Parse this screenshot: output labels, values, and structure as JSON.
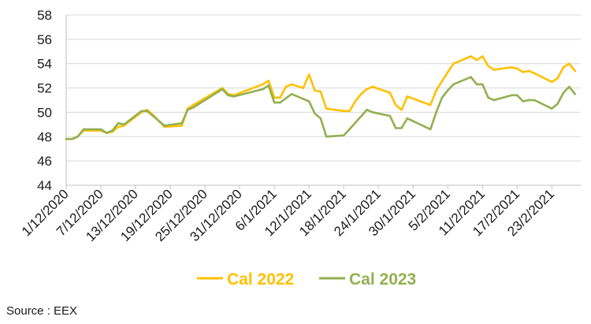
{
  "chart_data": {
    "type": "line",
    "title": "",
    "xlabel": "",
    "ylabel": "",
    "ylim": [
      44,
      58
    ],
    "yticks": [
      44,
      46,
      48,
      50,
      52,
      54,
      56,
      58
    ],
    "xrange": [
      "2020-12-01",
      "2021-02-28"
    ],
    "grid": "horizontal",
    "legend_position": "bottom",
    "x_tick_labels": [
      "1/12/2020",
      "7/12/2020",
      "13/12/2020",
      "19/12/2020",
      "25/12/2020",
      "31/12/2020",
      "6/1/2021",
      "12/1/2021",
      "18/1/2021",
      "24/1/2021",
      "30/1/2021",
      "5/2/2021",
      "11/2/2021",
      "17/2/2021",
      "23/2/2021"
    ],
    "x_tick_dates": [
      "2020-12-01",
      "2020-12-07",
      "2020-12-13",
      "2020-12-19",
      "2020-12-25",
      "2020-12-31",
      "2021-01-06",
      "2021-01-12",
      "2021-01-18",
      "2021-01-24",
      "2021-01-30",
      "2021-02-05",
      "2021-02-11",
      "2021-02-17",
      "2021-02-23"
    ],
    "series": [
      {
        "name": "Cal 2022",
        "color": "#FFC000",
        "points": [
          [
            "2020-12-01",
            47.8
          ],
          [
            "2020-12-02",
            47.8
          ],
          [
            "2020-12-03",
            48.0
          ],
          [
            "2020-12-04",
            48.5
          ],
          [
            "2020-12-07",
            48.5
          ],
          [
            "2020-12-08",
            48.3
          ],
          [
            "2020-12-09",
            48.4
          ],
          [
            "2020-12-10",
            48.8
          ],
          [
            "2020-12-11",
            48.9
          ],
          [
            "2020-12-14",
            50.0
          ],
          [
            "2020-12-15",
            50.2
          ],
          [
            "2020-12-16",
            49.8
          ],
          [
            "2020-12-17",
            49.3
          ],
          [
            "2020-12-18",
            48.8
          ],
          [
            "2020-12-21",
            48.9
          ],
          [
            "2020-12-22",
            50.3
          ],
          [
            "2020-12-23",
            50.6
          ],
          [
            "2020-12-28",
            52.0
          ],
          [
            "2020-12-29",
            51.5
          ],
          [
            "2020-12-30",
            51.4
          ],
          [
            "2021-01-04",
            52.3
          ],
          [
            "2021-01-05",
            52.6
          ],
          [
            "2021-01-06",
            51.2
          ],
          [
            "2021-01-07",
            51.2
          ],
          [
            "2021-01-08",
            52.1
          ],
          [
            "2021-01-09",
            52.3
          ],
          [
            "2021-01-11",
            52.0
          ],
          [
            "2021-01-12",
            53.1
          ],
          [
            "2021-01-13",
            51.8
          ],
          [
            "2021-01-14",
            51.7
          ],
          [
            "2021-01-15",
            50.3
          ],
          [
            "2021-01-18",
            50.1
          ],
          [
            "2021-01-19",
            50.1
          ],
          [
            "2021-01-20",
            50.9
          ],
          [
            "2021-01-21",
            51.5
          ],
          [
            "2021-01-22",
            51.9
          ],
          [
            "2021-01-23",
            52.1
          ],
          [
            "2021-01-26",
            51.6
          ],
          [
            "2021-01-27",
            50.6
          ],
          [
            "2021-01-28",
            50.2
          ],
          [
            "2021-01-29",
            51.3
          ],
          [
            "2021-02-02",
            50.6
          ],
          [
            "2021-02-03",
            51.8
          ],
          [
            "2021-02-05",
            53.3
          ],
          [
            "2021-02-06",
            54.0
          ],
          [
            "2021-02-09",
            54.6
          ],
          [
            "2021-02-10",
            54.3
          ],
          [
            "2021-02-11",
            54.6
          ],
          [
            "2021-02-12",
            53.8
          ],
          [
            "2021-02-13",
            53.5
          ],
          [
            "2021-02-16",
            53.7
          ],
          [
            "2021-02-17",
            53.6
          ],
          [
            "2021-02-18",
            53.3
          ],
          [
            "2021-02-19",
            53.4
          ],
          [
            "2021-02-20",
            53.2
          ],
          [
            "2021-02-23",
            52.5
          ],
          [
            "2021-02-24",
            52.8
          ],
          [
            "2021-02-25",
            53.7
          ],
          [
            "2021-02-26",
            54.0
          ],
          [
            "2021-02-27",
            53.4
          ]
        ]
      },
      {
        "name": "Cal 2023",
        "color": "#92B050",
        "points": [
          [
            "2020-12-01",
            47.8
          ],
          [
            "2020-12-02",
            47.8
          ],
          [
            "2020-12-03",
            48.0
          ],
          [
            "2020-12-04",
            48.6
          ],
          [
            "2020-12-07",
            48.6
          ],
          [
            "2020-12-08",
            48.3
          ],
          [
            "2020-12-09",
            48.5
          ],
          [
            "2020-12-10",
            49.1
          ],
          [
            "2020-12-11",
            49.0
          ],
          [
            "2020-12-14",
            50.1
          ],
          [
            "2020-12-15",
            50.1
          ],
          [
            "2020-12-16",
            49.7
          ],
          [
            "2020-12-17",
            49.3
          ],
          [
            "2020-12-18",
            48.9
          ],
          [
            "2020-12-21",
            49.1
          ],
          [
            "2020-12-22",
            50.2
          ],
          [
            "2020-12-23",
            50.4
          ],
          [
            "2020-12-28",
            51.9
          ],
          [
            "2020-12-29",
            51.4
          ],
          [
            "2020-12-30",
            51.3
          ],
          [
            "2021-01-04",
            51.9
          ],
          [
            "2021-01-05",
            52.2
          ],
          [
            "2021-01-06",
            50.8
          ],
          [
            "2021-01-07",
            50.8
          ],
          [
            "2021-01-09",
            51.5
          ],
          [
            "2021-01-11",
            51.1
          ],
          [
            "2021-01-12",
            50.9
          ],
          [
            "2021-01-13",
            49.9
          ],
          [
            "2021-01-14",
            49.5
          ],
          [
            "2021-01-15",
            48.0
          ],
          [
            "2021-01-18",
            48.1
          ],
          [
            "2021-01-19",
            48.6
          ],
          [
            "2021-01-22",
            50.2
          ],
          [
            "2021-01-23",
            50.0
          ],
          [
            "2021-01-25",
            49.8
          ],
          [
            "2021-01-26",
            49.7
          ],
          [
            "2021-01-27",
            48.7
          ],
          [
            "2021-01-28",
            48.7
          ],
          [
            "2021-01-29",
            49.5
          ],
          [
            "2021-02-02",
            48.6
          ],
          [
            "2021-02-03",
            50.0
          ],
          [
            "2021-02-04",
            51.2
          ],
          [
            "2021-02-05",
            51.8
          ],
          [
            "2021-02-06",
            52.3
          ],
          [
            "2021-02-09",
            52.9
          ],
          [
            "2021-02-10",
            52.3
          ],
          [
            "2021-02-11",
            52.3
          ],
          [
            "2021-02-12",
            51.2
          ],
          [
            "2021-02-13",
            51.0
          ],
          [
            "2021-02-16",
            51.4
          ],
          [
            "2021-02-17",
            51.4
          ],
          [
            "2021-02-18",
            50.9
          ],
          [
            "2021-02-19",
            51.0
          ],
          [
            "2021-02-20",
            51.0
          ],
          [
            "2021-02-23",
            50.3
          ],
          [
            "2021-02-24",
            50.7
          ],
          [
            "2021-02-25",
            51.6
          ],
          [
            "2021-02-26",
            52.1
          ],
          [
            "2021-02-27",
            51.5
          ]
        ]
      }
    ]
  },
  "source_text": "Source : EEX"
}
